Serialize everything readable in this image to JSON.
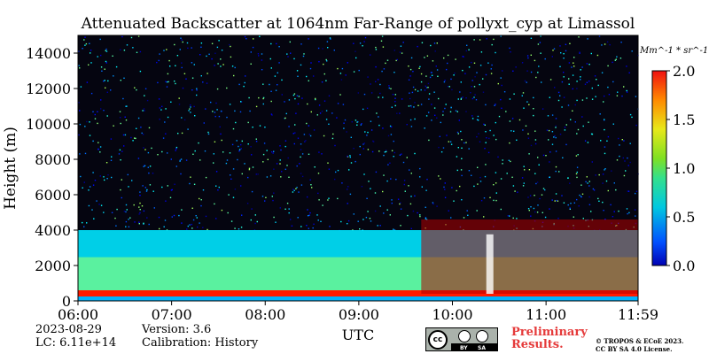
{
  "chart_data": {
    "type": "heatmap",
    "title": "Attenuated Backscatter at 1064nm Far-Range of pollyxt_cyp at Limassol",
    "xlabel": "UTC",
    "ylabel": "Height (m)",
    "x_ticks": [
      "06:00",
      "07:00",
      "08:00",
      "09:00",
      "10:00",
      "11:00",
      "11:59"
    ],
    "x_range": [
      "06:00",
      "11:59"
    ],
    "y_ticks": [
      0,
      2000,
      4000,
      6000,
      8000,
      10000,
      12000,
      14000
    ],
    "y_range": [
      0,
      15000
    ],
    "colorbar": {
      "label": "Mm^-1 * sr^-1",
      "ticks": [
        "0.0",
        "0.5",
        "1.0",
        "1.5",
        "2.0"
      ],
      "range": [
        0.0,
        2.0
      ],
      "colormap": "jet"
    },
    "features": [
      {
        "name": "surface layer",
        "height_range_m": [
          0,
          600
        ],
        "time_range": [
          "06:00",
          "11:59"
        ],
        "approx_value": 2.0
      },
      {
        "name": "aerosol layer",
        "height_range_m": [
          600,
          4000
        ],
        "time_range": [
          "06:00",
          "11:59"
        ],
        "approx_value": 0.6
      },
      {
        "name": "cloud",
        "height_range_m": [
          400,
          4600
        ],
        "time_range": [
          "09:40",
          "11:59"
        ],
        "approx_value": 2.0
      },
      {
        "name": "noise",
        "height_range_m": [
          4000,
          15000
        ],
        "time_range": [
          "06:00",
          "11:59"
        ],
        "approx_value": 0.1
      }
    ]
  },
  "footer": {
    "date": "2023-08-29",
    "lc": "LC: 6.11e+14",
    "version": "Version: 3.6",
    "calibration": "Calibration: History",
    "preliminary_line1": "Preliminary",
    "preliminary_line2": "Results.",
    "copyright_line1": "© TROPOS & ECoE 2023.",
    "copyright_line2": "CC BY SA 4.0 License.",
    "cc_badge": {
      "cc": "cc",
      "by": "BY",
      "sa": "SA"
    }
  },
  "colors": {
    "preliminary": "#e53a3a"
  }
}
